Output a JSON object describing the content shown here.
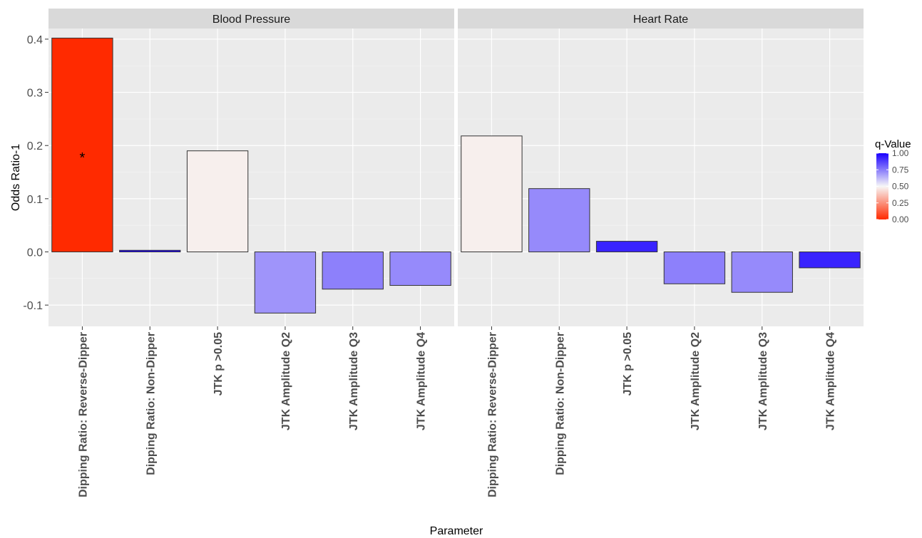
{
  "chart_data": {
    "type": "bar",
    "ylabel": "Odds Ratio-1",
    "xlabel": "Parameter",
    "ylim": [
      -0.14,
      0.42
    ],
    "yticks": [
      -0.1,
      0.0,
      0.1,
      0.2,
      0.3,
      0.4
    ],
    "ytick_labels": [
      "-0.1",
      "0.0",
      "0.1",
      "0.2",
      "0.3",
      "0.4"
    ],
    "grid": true,
    "categories": [
      "Dipping Ratio: Reverse-Dipper",
      "Dipping Ratio: Non-Dipper",
      "JTK p >0.05",
      "JTK Amplitude Q2",
      "JTK Amplitude Q3",
      "JTK Amplitude Q4"
    ],
    "facets": [
      {
        "name": "Blood Pressure",
        "values": [
          0.402,
          0.003,
          0.19,
          -0.115,
          -0.07,
          -0.063
        ],
        "q_values": [
          0.0,
          1.0,
          0.48,
          0.7,
          0.74,
          0.72
        ],
        "annotations": [
          "*",
          "",
          "",
          "",
          "",
          ""
        ]
      },
      {
        "name": "Heart Rate",
        "values": [
          0.218,
          0.119,
          0.02,
          -0.06,
          -0.076,
          -0.03
        ],
        "q_values": [
          0.48,
          0.72,
          0.93,
          0.74,
          0.72,
          0.93
        ],
        "annotations": [
          "",
          "",
          "",
          "",
          "",
          ""
        ]
      }
    ],
    "legend": {
      "title": "q-Value",
      "position": "right",
      "ticks": [
        "0.00",
        "0.25",
        "0.50",
        "0.75",
        "1.00"
      ],
      "colors": {
        "low": "#ff2a00",
        "mid": "#f7f7f7",
        "high": "#1a00ff"
      }
    }
  }
}
